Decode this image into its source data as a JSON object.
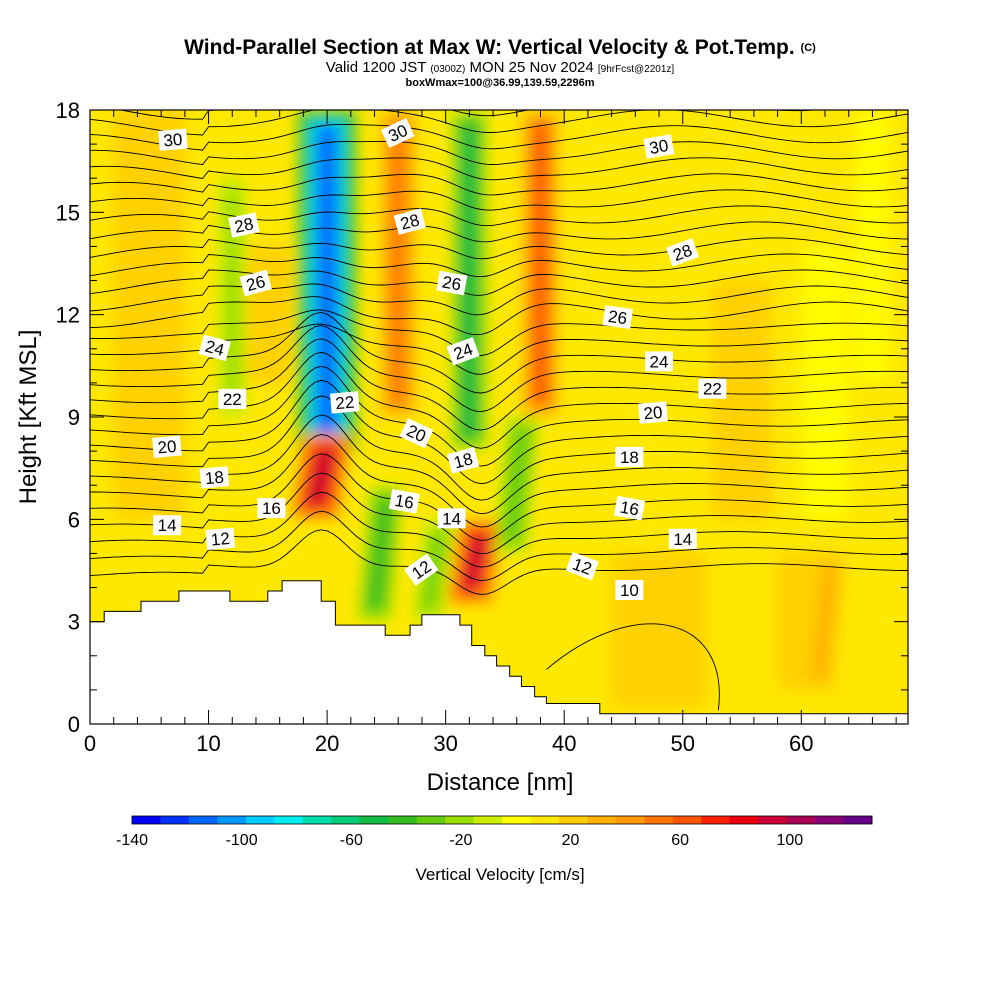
{
  "title": {
    "main": "Wind-Parallel Section at Max W: Vertical Velocity & Pot.Temp.",
    "copyright": "(C)",
    "valid_prefix": "Valid 1200 JST",
    "valid_utc": "(0300Z)",
    "valid_date": "MON 25 Nov 2024",
    "forecast": "[9hrFcst@2201z]",
    "box": "boxWmax=100@36.99,139.59,2296m"
  },
  "chart_data": {
    "type": "heatmap",
    "xlabel": "Distance [nm]",
    "ylabel": "Height [Kft MSL]",
    "xlim": [
      0,
      69
    ],
    "ylim": [
      0,
      18
    ],
    "x_ticks": [
      "0",
      "10",
      "20",
      "30",
      "40",
      "50",
      "60"
    ],
    "y_ticks": [
      "0",
      "3",
      "6",
      "9",
      "12",
      "15",
      "18"
    ],
    "colorbar": {
      "title": "Vertical Velocity [cm/s]",
      "min": -140,
      "max": 120,
      "step": 10,
      "tick_labels": [
        "-140",
        "-100",
        "-60",
        "-20",
        "20",
        "60",
        "100"
      ],
      "colors": [
        "#0000ff",
        "#0033ff",
        "#0066ff",
        "#0099ff",
        "#00ccff",
        "#00eeee",
        "#00ddaa",
        "#00cc77",
        "#11bb44",
        "#33bb22",
        "#66cc11",
        "#99dd00",
        "#ccee00",
        "#ffff00",
        "#ffe800",
        "#ffcc00",
        "#ffb000",
        "#ff9900",
        "#ff7700",
        "#ff5500",
        "#ff2200",
        "#ee0011",
        "#cc0033",
        "#aa0055",
        "#880077",
        "#660088"
      ]
    },
    "vertical_velocity_features": [
      {
        "x": 20,
        "z_range": [
          8,
          18
        ],
        "w": -120
      },
      {
        "x": 26,
        "z_range": [
          9,
          18
        ],
        "w": 45
      },
      {
        "x": 32,
        "z_range": [
          8,
          18
        ],
        "w": -55
      },
      {
        "x": 38,
        "z_range": [
          9,
          18
        ],
        "w": 50
      },
      {
        "x": 19.5,
        "z_range": [
          6,
          8.5
        ],
        "w": 85
      },
      {
        "x": 32.5,
        "z_range": [
          3.5,
          6
        ],
        "w": 80
      },
      {
        "x": 24.5,
        "z_range": [
          3,
          7
        ],
        "w": -45
      },
      {
        "x": 29,
        "z_range": [
          3,
          6
        ],
        "w": -35
      },
      {
        "x": 36,
        "z_range": [
          5,
          9
        ],
        "w": -40
      },
      {
        "x": 12,
        "z_range": [
          9,
          16
        ],
        "w": -25
      },
      {
        "x": 62,
        "z_range": [
          1,
          5
        ],
        "w": 25
      }
    ],
    "pot_temp_labels": [
      "30",
      "28",
      "26",
      "24",
      "22",
      "20",
      "18",
      "16",
      "14",
      "12",
      "10"
    ],
    "terrain_height_kft": [
      {
        "x": 0,
        "z": 3.0
      },
      {
        "x": 1.2,
        "z": 3.3
      },
      {
        "x": 4.3,
        "z": 3.6
      },
      {
        "x": 7.5,
        "z": 3.9
      },
      {
        "x": 11.8,
        "z": 3.6
      },
      {
        "x": 15,
        "z": 3.9
      },
      {
        "x": 16.2,
        "z": 4.2
      },
      {
        "x": 19.5,
        "z": 3.6
      },
      {
        "x": 20.7,
        "z": 2.9
      },
      {
        "x": 24.9,
        "z": 2.6
      },
      {
        "x": 27,
        "z": 2.9
      },
      {
        "x": 28,
        "z": 3.2
      },
      {
        "x": 31.2,
        "z": 2.9
      },
      {
        "x": 32.2,
        "z": 2.3
      },
      {
        "x": 33.3,
        "z": 2.0
      },
      {
        "x": 34.3,
        "z": 1.7
      },
      {
        "x": 35.4,
        "z": 1.4
      },
      {
        "x": 36.4,
        "z": 1.1
      },
      {
        "x": 37.5,
        "z": 0.8
      },
      {
        "x": 38.5,
        "z": 0.6
      },
      {
        "x": 43,
        "z": 0.3
      },
      {
        "x": 69,
        "z": 0.3
      }
    ]
  }
}
